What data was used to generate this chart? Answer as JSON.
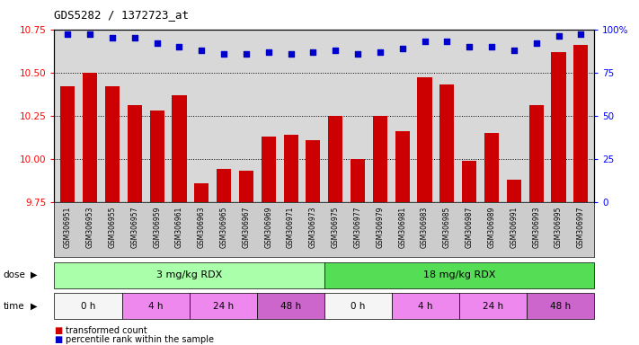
{
  "title": "GDS5282 / 1372723_at",
  "categories": [
    "GSM306951",
    "GSM306953",
    "GSM306955",
    "GSM306957",
    "GSM306959",
    "GSM306961",
    "GSM306963",
    "GSM306965",
    "GSM306967",
    "GSM306969",
    "GSM306971",
    "GSM306973",
    "GSM306975",
    "GSM306977",
    "GSM306979",
    "GSM306981",
    "GSM306983",
    "GSM306985",
    "GSM306987",
    "GSM306989",
    "GSM306991",
    "GSM306993",
    "GSM306995",
    "GSM306997"
  ],
  "bar_values": [
    10.42,
    10.5,
    10.42,
    10.31,
    10.28,
    10.37,
    9.86,
    9.94,
    9.93,
    10.13,
    10.14,
    10.11,
    10.25,
    10.0,
    10.25,
    10.16,
    10.47,
    10.43,
    9.99,
    10.15,
    9.88,
    10.31,
    10.62,
    10.66
  ],
  "percentile_values": [
    97,
    97,
    95,
    95,
    92,
    90,
    88,
    86,
    86,
    87,
    86,
    87,
    88,
    86,
    87,
    89,
    93,
    93,
    90,
    90,
    88,
    92,
    96,
    97
  ],
  "bar_color": "#cc0000",
  "percentile_color": "#0000cc",
  "ylim_left": [
    9.75,
    10.75
  ],
  "ylim_right": [
    0,
    100
  ],
  "yticks_left": [
    9.75,
    10.0,
    10.25,
    10.5,
    10.75
  ],
  "yticks_right": [
    0,
    25,
    50,
    75,
    100
  ],
  "ytick_labels_right": [
    "0",
    "25",
    "50",
    "75",
    "100%"
  ],
  "grid_values": [
    10.0,
    10.25,
    10.5
  ],
  "dose_groups": [
    {
      "label": "3 mg/kg RDX",
      "start": 0,
      "end": 12,
      "color": "#aaffaa"
    },
    {
      "label": "18 mg/kg RDX",
      "start": 12,
      "end": 24,
      "color": "#55dd55"
    }
  ],
  "time_groups": [
    {
      "label": "0 h",
      "start": 0,
      "end": 3,
      "color": "#f5f5f5"
    },
    {
      "label": "4 h",
      "start": 3,
      "end": 6,
      "color": "#ee88ee"
    },
    {
      "label": "24 h",
      "start": 6,
      "end": 9,
      "color": "#ee88ee"
    },
    {
      "label": "48 h",
      "start": 9,
      "end": 12,
      "color": "#cc66cc"
    },
    {
      "label": "0 h",
      "start": 12,
      "end": 15,
      "color": "#f5f5f5"
    },
    {
      "label": "4 h",
      "start": 15,
      "end": 18,
      "color": "#ee88ee"
    },
    {
      "label": "24 h",
      "start": 18,
      "end": 21,
      "color": "#ee88ee"
    },
    {
      "label": "48 h",
      "start": 21,
      "end": 24,
      "color": "#cc66cc"
    }
  ],
  "background_color": "#ffffff",
  "plot_bg_color": "#d8d8d8",
  "xlabel_bg_color": "#cccccc"
}
